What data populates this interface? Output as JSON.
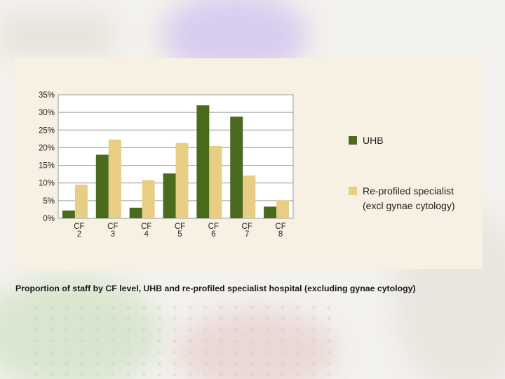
{
  "caption": "Proportion of staff by CF level, UHB and re-profiled specialist hospital (excluding gynae cytology)",
  "chart_data": {
    "type": "bar",
    "categories": [
      [
        "CF",
        "2"
      ],
      [
        "CF",
        "3"
      ],
      [
        "CF",
        "4"
      ],
      [
        "CF",
        "5"
      ],
      [
        "CF",
        "6"
      ],
      [
        "CF",
        "7"
      ],
      [
        "CF",
        "8"
      ]
    ],
    "series": [
      {
        "name": "UHB",
        "color": "#4a6b1e",
        "values": [
          2.2,
          18,
          3,
          12.7,
          32,
          28.8,
          3.3
        ]
      },
      {
        "name": [
          "Re-profiled specialist",
          "(excl gynae cytology)"
        ],
        "color": "#e8cd84",
        "values": [
          9.5,
          22.3,
          10.8,
          21.3,
          20.5,
          12.1,
          5.1
        ]
      }
    ],
    "yticks": [
      "0%",
      "5%",
      "10%",
      "15%",
      "20%",
      "25%",
      "30%",
      "35%"
    ],
    "ylim": [
      0,
      35
    ],
    "grid": true,
    "legend_position": "right"
  }
}
